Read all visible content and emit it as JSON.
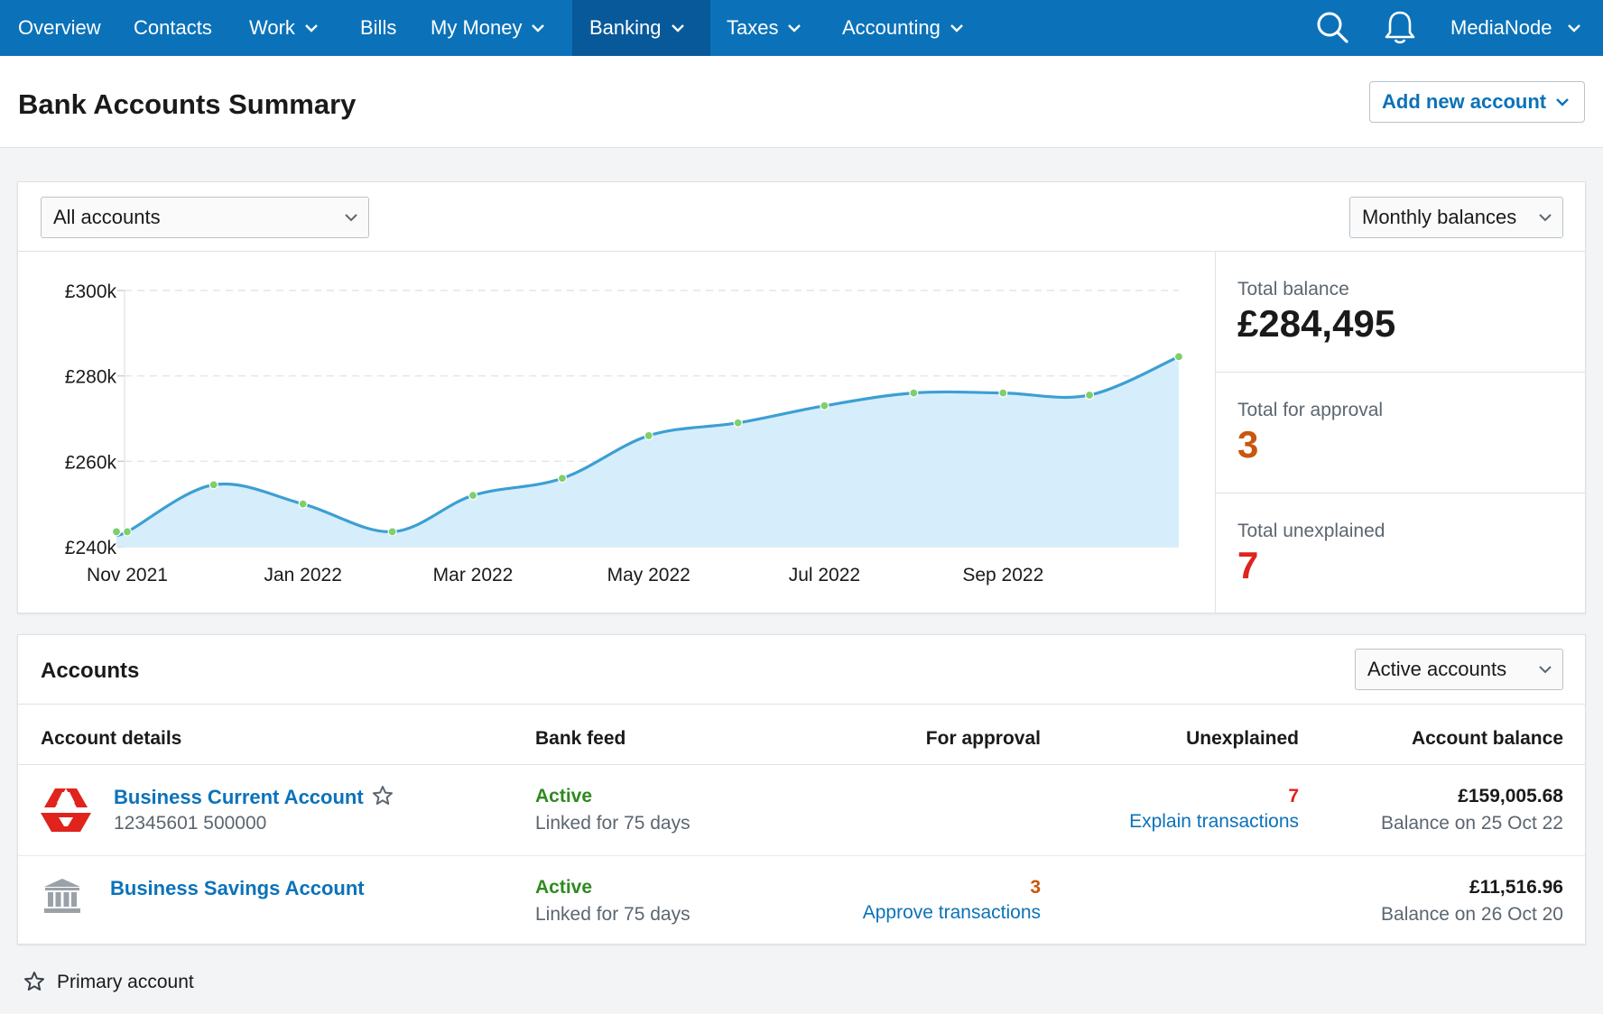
{
  "nav": {
    "items": [
      {
        "label": "Overview"
      },
      {
        "label": "Contacts"
      },
      {
        "label": "Work"
      },
      {
        "label": "Bills"
      },
      {
        "label": "My Money"
      },
      {
        "label": "Banking"
      },
      {
        "label": "Taxes"
      },
      {
        "label": "Accounting"
      }
    ],
    "active": "Banking",
    "account_label": "MediaNode"
  },
  "header": {
    "title": "Bank Accounts Summary",
    "add_button": "Add new account"
  },
  "summary": {
    "account_filter": "All accounts",
    "period_filter": "Monthly balances",
    "stats": [
      {
        "label": "Total balance",
        "value": "£284,495",
        "color": "#1a1a1a"
      },
      {
        "label": "Total for approval",
        "value": "3",
        "color": "#c8570f"
      },
      {
        "label": "Total unexplained",
        "value": "7",
        "color": "#e0231c"
      }
    ]
  },
  "chart_data": {
    "type": "area",
    "x": [
      "2021-10-31",
      "2021-11-01",
      "2021-12-01",
      "2022-01-01",
      "2022-02-01",
      "2022-03-01",
      "2022-04-01",
      "2022-05-01",
      "2022-06-01",
      "2022-07-01",
      "2022-08-01",
      "2022-09-01",
      "2022-10-01",
      "2022-11-01"
    ],
    "values": [
      243500,
      243500,
      254500,
      250000,
      243500,
      252000,
      256000,
      266000,
      269000,
      273000,
      276000,
      276000,
      275500,
      284495
    ],
    "x_tick_labels": [
      "Nov 2021",
      "Jan 2022",
      "Mar 2022",
      "May 2022",
      "Jul 2022",
      "Sep 2022"
    ],
    "y_tick_labels": [
      "£240k",
      "£260k",
      "£280k",
      "£300k"
    ],
    "ylim": [
      240000,
      300000
    ],
    "grid": true,
    "line_color": "#3d9fd3",
    "fill_color": "#d6eefb",
    "point_color": "#7fcf6a"
  },
  "accounts": {
    "title": "Accounts",
    "filter": "Active accounts",
    "columns": [
      "Account details",
      "Bank feed",
      "For approval",
      "Unexplained",
      "Account balance"
    ],
    "rows": [
      {
        "name": "Business Current Account",
        "number": "12345601 500000",
        "icon": "natwest-logo-icon",
        "primary": true,
        "feed_status": "Active",
        "feed_detail": "Linked for 75 days",
        "approval_count": "",
        "approval_link": "",
        "unexplained_count": "7",
        "unexplained_link": "Explain transactions",
        "balance": "£159,005.68",
        "balance_date": "Balance on 25 Oct 22"
      },
      {
        "name": "Business Savings Account",
        "number": "",
        "icon": "bank-icon",
        "primary": false,
        "feed_status": "Active",
        "feed_detail": "Linked for 75 days",
        "approval_count": "3",
        "approval_link": "Approve transactions",
        "unexplained_count": "",
        "unexplained_link": "",
        "balance": "£11,516.96",
        "balance_date": "Balance on 26 Oct 20"
      }
    ]
  },
  "legend": {
    "primary_label": "Primary account"
  }
}
